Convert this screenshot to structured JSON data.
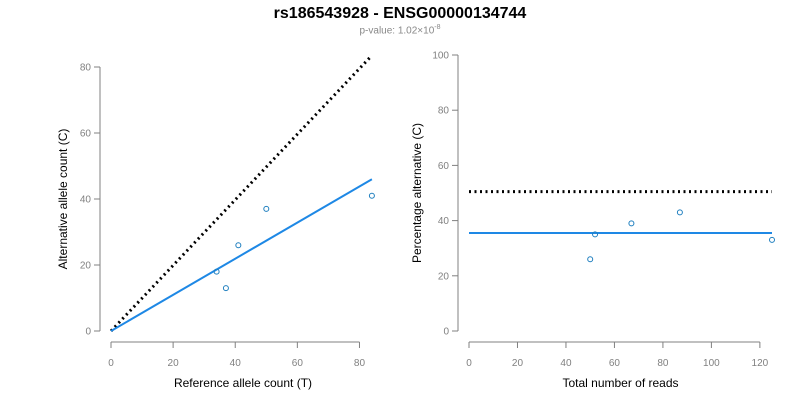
{
  "title": "rs186543928 - ENSG00000134744",
  "subtitle": {
    "prefix": "p-value: 1.02×10",
    "exponent": "-8"
  },
  "colors": {
    "fit": "#1e88e5",
    "points": "#1f7fbf",
    "reference": "#000000",
    "axis": "#808080"
  },
  "chart_data": [
    {
      "type": "scatter",
      "xlabel": "Reference allele count (T)",
      "ylabel": "Alternative allele count (C)",
      "xlim": [
        0,
        85
      ],
      "ylim": [
        0,
        80
      ],
      "xticks": [
        0,
        20,
        40,
        60,
        80
      ],
      "yticks": [
        0,
        20,
        40,
        60,
        80
      ],
      "points": [
        {
          "x": 34,
          "y": 18
        },
        {
          "x": 37,
          "y": 13
        },
        {
          "x": 41,
          "y": 26
        },
        {
          "x": 50,
          "y": 37
        },
        {
          "x": 84,
          "y": 41
        }
      ],
      "fit_line": {
        "x": [
          0,
          84
        ],
        "y": [
          0,
          46
        ]
      },
      "reference_line": {
        "x": [
          0,
          84
        ],
        "y": [
          0,
          83.5
        ]
      }
    },
    {
      "type": "scatter",
      "xlabel": "Total number of reads",
      "ylabel": "Percentage alternative (C)",
      "xlim": [
        0,
        125
      ],
      "ylim": [
        0,
        100
      ],
      "xticks": [
        0,
        20,
        40,
        60,
        80,
        100,
        120
      ],
      "yticks": [
        0,
        20,
        40,
        60,
        80,
        100
      ],
      "points": [
        {
          "x": 50,
          "y": 26
        },
        {
          "x": 52,
          "y": 35
        },
        {
          "x": 67,
          "y": 39
        },
        {
          "x": 87,
          "y": 43
        },
        {
          "x": 125,
          "y": 33
        }
      ],
      "fit_line": {
        "x": [
          0,
          125
        ],
        "y": [
          35.5,
          35.5
        ]
      },
      "reference_line": {
        "x": [
          0,
          125
        ],
        "y": [
          50.5,
          50.5
        ]
      }
    }
  ]
}
